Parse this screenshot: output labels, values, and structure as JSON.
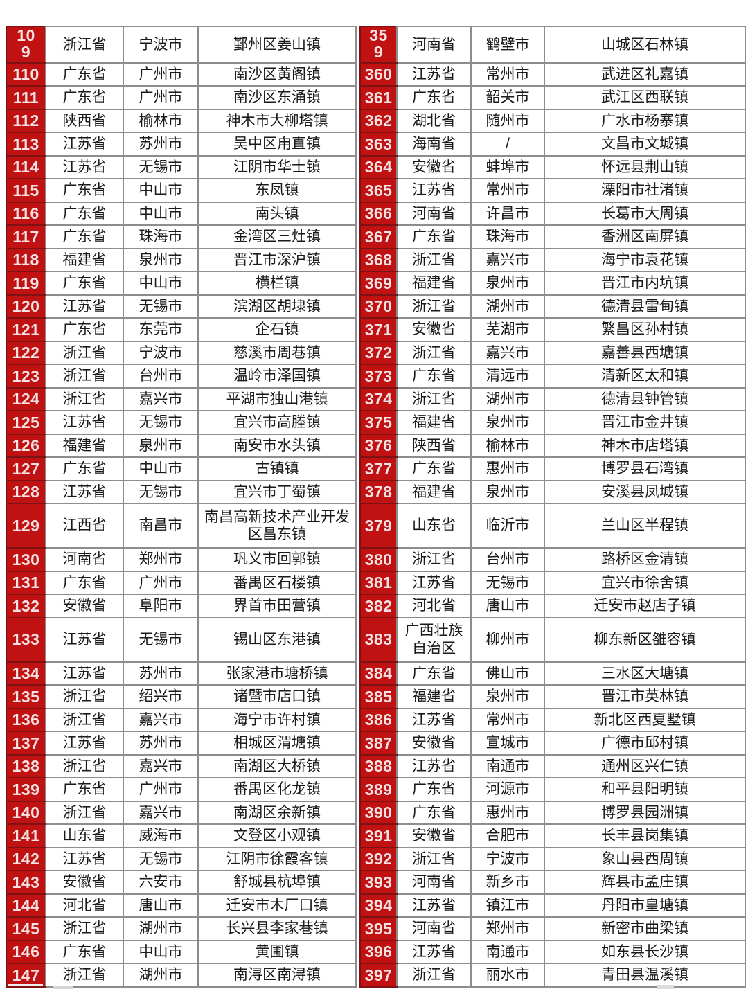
{
  "colors": {
    "rank_background": "#c01212",
    "rank_text": "#f6e2e2",
    "rank_border": "#7e1212",
    "grid": "#8d8d8d",
    "cell_text": "#1a1a1a",
    "page_background": "#ffffff"
  },
  "tables": [
    {
      "side": "left",
      "rows": [
        [
          "109",
          "浙江省",
          "宁波市",
          "鄞州区姜山镇"
        ],
        [
          "110",
          "广东省",
          "广州市",
          "南沙区黄阁镇"
        ],
        [
          "111",
          "广东省",
          "广州市",
          "南沙区东涌镇"
        ],
        [
          "112",
          "陕西省",
          "榆林市",
          "神木市大柳塔镇"
        ],
        [
          "113",
          "江苏省",
          "苏州市",
          "吴中区甪直镇"
        ],
        [
          "114",
          "江苏省",
          "无锡市",
          "江阴市华士镇"
        ],
        [
          "115",
          "广东省",
          "中山市",
          "东凤镇"
        ],
        [
          "116",
          "广东省",
          "中山市",
          "南头镇"
        ],
        [
          "117",
          "广东省",
          "珠海市",
          "金湾区三灶镇"
        ],
        [
          "118",
          "福建省",
          "泉州市",
          "晋江市深沪镇"
        ],
        [
          "119",
          "广东省",
          "中山市",
          "横栏镇"
        ],
        [
          "120",
          "江苏省",
          "无锡市",
          "滨湖区胡埭镇"
        ],
        [
          "121",
          "广东省",
          "东莞市",
          "企石镇"
        ],
        [
          "122",
          "浙江省",
          "宁波市",
          "慈溪市周巷镇"
        ],
        [
          "123",
          "浙江省",
          "台州市",
          "温岭市泽国镇"
        ],
        [
          "124",
          "浙江省",
          "嘉兴市",
          "平湖市独山港镇"
        ],
        [
          "125",
          "江苏省",
          "无锡市",
          "宜兴市高塍镇"
        ],
        [
          "126",
          "福建省",
          "泉州市",
          "南安市水头镇"
        ],
        [
          "127",
          "广东省",
          "中山市",
          "古镇镇"
        ],
        [
          "128",
          "江苏省",
          "无锡市",
          "宜兴市丁蜀镇"
        ],
        [
          "129",
          "江西省",
          "南昌市",
          "南昌高新技术产业开发区昌东镇"
        ],
        [
          "130",
          "河南省",
          "郑州市",
          "巩义市回郭镇"
        ],
        [
          "131",
          "广东省",
          "广州市",
          "番禺区石楼镇"
        ],
        [
          "132",
          "安徽省",
          "阜阳市",
          "界首市田营镇"
        ],
        [
          "133",
          "江苏省",
          "无锡市",
          "锡山区东港镇"
        ],
        [
          "134",
          "江苏省",
          "苏州市",
          "张家港市塘桥镇"
        ],
        [
          "135",
          "浙江省",
          "绍兴市",
          "诸暨市店口镇"
        ],
        [
          "136",
          "浙江省",
          "嘉兴市",
          "海宁市许村镇"
        ],
        [
          "137",
          "江苏省",
          "苏州市",
          "相城区渭塘镇"
        ],
        [
          "138",
          "浙江省",
          "嘉兴市",
          "南湖区大桥镇"
        ],
        [
          "139",
          "广东省",
          "广州市",
          "番禺区化龙镇"
        ],
        [
          "140",
          "浙江省",
          "嘉兴市",
          "南湖区余新镇"
        ],
        [
          "141",
          "山东省",
          "威海市",
          "文登区小观镇"
        ],
        [
          "142",
          "江苏省",
          "无锡市",
          "江阴市徐霞客镇"
        ],
        [
          "143",
          "安徽省",
          "六安市",
          "舒城县杭埠镇"
        ],
        [
          "144",
          "河北省",
          "唐山市",
          "迁安市木厂口镇"
        ],
        [
          "145",
          "浙江省",
          "湖州市",
          "长兴县李家巷镇"
        ],
        [
          "146",
          "广东省",
          "中山市",
          "黄圃镇"
        ],
        [
          "147",
          "浙江省",
          "湖州市",
          "南浔区南浔镇"
        ]
      ]
    },
    {
      "side": "right",
      "rows": [
        [
          "359",
          "河南省",
          "鹤壁市",
          "山城区石林镇"
        ],
        [
          "360",
          "江苏省",
          "常州市",
          "武进区礼嘉镇"
        ],
        [
          "361",
          "广东省",
          "韶关市",
          "武江区西联镇"
        ],
        [
          "362",
          "湖北省",
          "随州市",
          "广水市杨寨镇"
        ],
        [
          "363",
          "海南省",
          "/",
          "文昌市文城镇"
        ],
        [
          "364",
          "安徽省",
          "蚌埠市",
          "怀远县荆山镇"
        ],
        [
          "365",
          "江苏省",
          "常州市",
          "溧阳市社渚镇"
        ],
        [
          "366",
          "河南省",
          "许昌市",
          "长葛市大周镇"
        ],
        [
          "367",
          "广东省",
          "珠海市",
          "香洲区南屏镇"
        ],
        [
          "368",
          "浙江省",
          "嘉兴市",
          "海宁市袁花镇"
        ],
        [
          "369",
          "福建省",
          "泉州市",
          "晋江市内坑镇"
        ],
        [
          "370",
          "浙江省",
          "湖州市",
          "德清县雷甸镇"
        ],
        [
          "371",
          "安徽省",
          "芜湖市",
          "繁昌区孙村镇"
        ],
        [
          "372",
          "浙江省",
          "嘉兴市",
          "嘉善县西塘镇"
        ],
        [
          "373",
          "广东省",
          "清远市",
          "清新区太和镇"
        ],
        [
          "374",
          "浙江省",
          "湖州市",
          "德清县钟管镇"
        ],
        [
          "375",
          "福建省",
          "泉州市",
          "晋江市金井镇"
        ],
        [
          "376",
          "陕西省",
          "榆林市",
          "神木市店塔镇"
        ],
        [
          "377",
          "广东省",
          "惠州市",
          "博罗县石湾镇"
        ],
        [
          "378",
          "福建省",
          "泉州市",
          "安溪县凤城镇"
        ],
        [
          "379",
          "山东省",
          "临沂市",
          "兰山区半程镇"
        ],
        [
          "380",
          "浙江省",
          "台州市",
          "路桥区金清镇"
        ],
        [
          "381",
          "江苏省",
          "无锡市",
          "宜兴市徐舍镇"
        ],
        [
          "382",
          "河北省",
          "唐山市",
          "迁安市赵店子镇"
        ],
        [
          "383",
          "广西壮族自治区",
          "柳州市",
          "柳东新区雒容镇"
        ],
        [
          "384",
          "广东省",
          "佛山市",
          "三水区大塘镇"
        ],
        [
          "385",
          "福建省",
          "泉州市",
          "晋江市英林镇"
        ],
        [
          "386",
          "江苏省",
          "常州市",
          "新北区西夏墅镇"
        ],
        [
          "387",
          "安徽省",
          "宣城市",
          "广德市邱村镇"
        ],
        [
          "388",
          "江苏省",
          "南通市",
          "通州区兴仁镇"
        ],
        [
          "389",
          "广东省",
          "河源市",
          "和平县阳明镇"
        ],
        [
          "390",
          "广东省",
          "惠州市",
          "博罗县园洲镇"
        ],
        [
          "391",
          "安徽省",
          "合肥市",
          "长丰县岗集镇"
        ],
        [
          "392",
          "浙江省",
          "宁波市",
          "象山县西周镇"
        ],
        [
          "393",
          "河南省",
          "新乡市",
          "辉县市孟庄镇"
        ],
        [
          "394",
          "江苏省",
          "镇江市",
          "丹阳市皇塘镇"
        ],
        [
          "395",
          "河南省",
          "郑州市",
          "新密市曲梁镇"
        ],
        [
          "396",
          "江苏省",
          "南通市",
          "如东县长沙镇"
        ],
        [
          "397",
          "浙江省",
          "丽水市",
          "青田县温溪镇"
        ]
      ]
    }
  ]
}
